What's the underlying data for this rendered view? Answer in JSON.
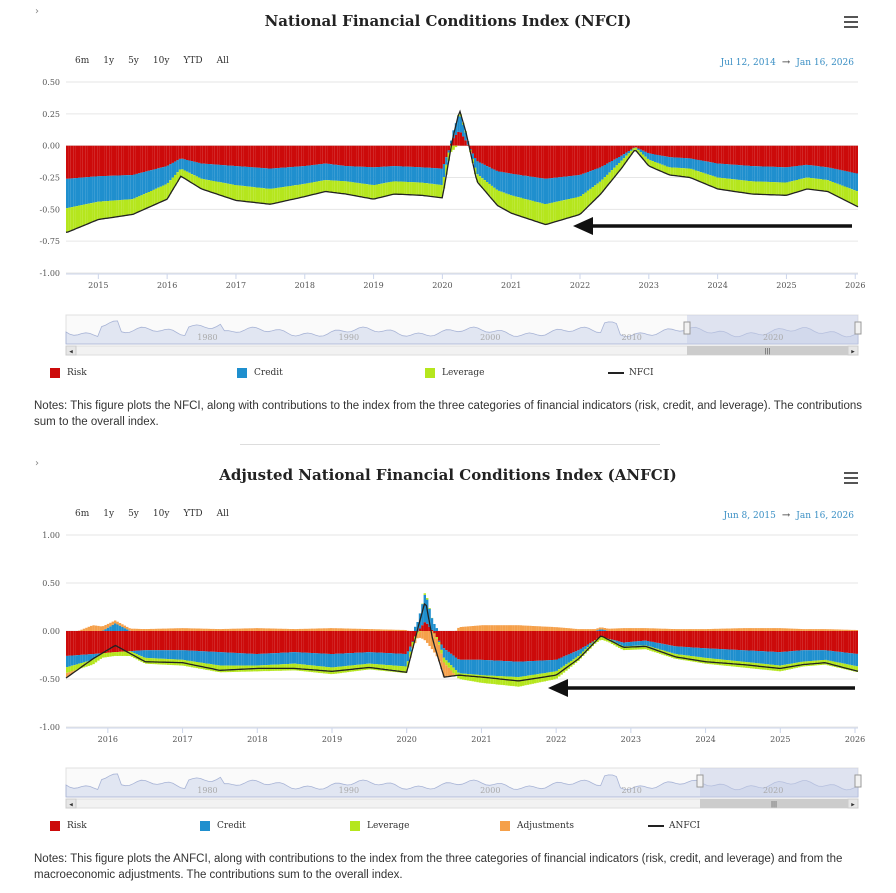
{
  "charts": [
    {
      "title": "National Financial Conditions Index (NFCI)",
      "range_buttons": [
        "6m",
        "1y",
        "5y",
        "10y",
        "YTD",
        "All"
      ],
      "date_from": "Jul 12, 2014",
      "date_to": "Jan 16, 2026",
      "date_arrow": "→",
      "y_ticks": [
        "0.50",
        "0.25",
        "0.00",
        "-0.25",
        "-0.50",
        "-0.75",
        "-1.00"
      ],
      "x_ticks": [
        "2015",
        "2016",
        "2017",
        "2018",
        "2019",
        "2020",
        "2021",
        "2022",
        "2023",
        "2024",
        "2025",
        "2026"
      ],
      "navigator_ticks": [
        "1980",
        "1990",
        "2000",
        "2010",
        "2020"
      ],
      "legend": [
        "Risk",
        "Credit",
        "Leverage",
        "NFCI"
      ],
      "notes": "Notes: This figure plots the NFCI, along with contributions to the index from the three categories of financial indicators (risk, credit, and leverage). The contributions sum to the overall index."
    },
    {
      "title": "Adjusted National Financial Conditions Index (ANFCI)",
      "range_buttons": [
        "6m",
        "1y",
        "5y",
        "10y",
        "YTD",
        "All"
      ],
      "date_from": "Jun 8, 2015",
      "date_to": "Jan 16, 2026",
      "date_arrow": "→",
      "y_ticks": [
        "1.00",
        "0.50",
        "0.00",
        "-0.50",
        "-1.00"
      ],
      "x_ticks": [
        "2016",
        "2017",
        "2018",
        "2019",
        "2020",
        "2021",
        "2022",
        "2023",
        "2024",
        "2025",
        "2026"
      ],
      "navigator_ticks": [
        "1980",
        "1990",
        "2000",
        "2010",
        "2020"
      ],
      "legend": [
        "Risk",
        "Credit",
        "Leverage",
        "Adjustments",
        "ANFCI"
      ],
      "notes": "Notes: This figure plots the ANFCI, along with contributions to the index from the three categories of financial indicators (risk, credit, and leverage) and from the macroeconomic adjustments. The contributions sum to the overall index."
    }
  ],
  "colors": {
    "risk": "#cc0a0a",
    "credit": "#1f8fce",
    "leverage": "#b5e61d",
    "adjustments": "#f5a04a",
    "index_line": "#222222",
    "navigator_fill": "#dde3f1",
    "navigator_line": "#9aa8d0"
  },
  "chart_data": [
    {
      "type": "stacked-area-with-line",
      "title": "National Financial Conditions Index (NFCI)",
      "x": [
        2014.55,
        2015.0,
        2015.5,
        2016.0,
        2016.2,
        2016.5,
        2017.0,
        2017.5,
        2018.0,
        2018.3,
        2018.6,
        2019.0,
        2019.3,
        2019.7,
        2020.0,
        2020.15,
        2020.25,
        2020.35,
        2020.5,
        2020.8,
        2021.0,
        2021.5,
        2022.0,
        2022.3,
        2022.6,
        2022.8,
        2023.0,
        2023.3,
        2023.6,
        2024.0,
        2024.5,
        2025.0,
        2025.3,
        2025.6,
        2026.04
      ],
      "series": [
        {
          "name": "Risk",
          "values": [
            -0.26,
            -0.24,
            -0.23,
            -0.16,
            -0.1,
            -0.14,
            -0.16,
            -0.18,
            -0.16,
            -0.14,
            -0.16,
            -0.17,
            -0.16,
            -0.17,
            -0.18,
            0.05,
            0.12,
            0.03,
            -0.12,
            -0.2,
            -0.22,
            -0.26,
            -0.23,
            -0.17,
            -0.08,
            -0.01,
            -0.06,
            -0.09,
            -0.1,
            -0.14,
            -0.16,
            -0.17,
            -0.15,
            -0.17,
            -0.22
          ]
        },
        {
          "name": "Credit",
          "values": [
            -0.23,
            -0.2,
            -0.19,
            -0.14,
            -0.08,
            -0.12,
            -0.15,
            -0.16,
            -0.14,
            -0.13,
            -0.12,
            -0.14,
            -0.12,
            -0.12,
            -0.13,
            0.05,
            0.14,
            0.05,
            -0.1,
            -0.15,
            -0.17,
            -0.2,
            -0.17,
            -0.11,
            -0.04,
            -0.0,
            -0.05,
            -0.08,
            -0.08,
            -0.11,
            -0.12,
            -0.12,
            -0.1,
            -0.1,
            -0.14
          ]
        },
        {
          "name": "Leverage",
          "values": [
            -0.19,
            -0.14,
            -0.12,
            -0.12,
            -0.06,
            -0.08,
            -0.12,
            -0.12,
            -0.1,
            -0.09,
            -0.1,
            -0.11,
            -0.1,
            -0.1,
            -0.1,
            -0.04,
            0.02,
            0.01,
            -0.06,
            -0.12,
            -0.14,
            -0.16,
            -0.14,
            -0.1,
            -0.06,
            -0.02,
            -0.05,
            -0.06,
            -0.07,
            -0.09,
            -0.1,
            -0.1,
            -0.09,
            -0.09,
            -0.12
          ]
        }
      ],
      "index_name": "NFCI",
      "index_values": [
        -0.68,
        -0.58,
        -0.54,
        -0.42,
        -0.24,
        -0.34,
        -0.43,
        -0.46,
        -0.4,
        -0.36,
        -0.38,
        -0.42,
        -0.38,
        -0.39,
        -0.41,
        0.06,
        0.28,
        0.09,
        -0.28,
        -0.47,
        -0.53,
        -0.62,
        -0.54,
        -0.38,
        -0.18,
        -0.03,
        -0.16,
        -0.23,
        -0.25,
        -0.34,
        -0.38,
        -0.39,
        -0.34,
        -0.36,
        -0.48
      ],
      "ylim": [
        -1.0,
        0.5
      ],
      "xlim": [
        2014.53,
        2026.04
      ],
      "annotations": [
        {
          "type": "arrow",
          "points_to": "2022 trough"
        }
      ]
    },
    {
      "type": "stacked-area-with-line",
      "title": "Adjusted National Financial Conditions Index (ANFCI)",
      "x": [
        2015.44,
        2015.8,
        2016.1,
        2016.5,
        2017.0,
        2017.5,
        2018.0,
        2018.5,
        2019.0,
        2019.5,
        2020.0,
        2020.15,
        2020.25,
        2020.35,
        2020.5,
        2020.7,
        2021.0,
        2021.5,
        2022.0,
        2022.3,
        2022.6,
        2022.9,
        2023.2,
        2023.6,
        2024.0,
        2024.5,
        2025.0,
        2025.3,
        2025.6,
        2026.04
      ],
      "series": [
        {
          "name": "Risk",
          "values": [
            -0.26,
            -0.24,
            -0.22,
            -0.2,
            -0.2,
            -0.22,
            -0.24,
            -0.22,
            -0.24,
            -0.22,
            -0.24,
            0.0,
            0.1,
            0.0,
            -0.18,
            -0.3,
            -0.3,
            -0.32,
            -0.3,
            -0.2,
            -0.06,
            -0.12,
            -0.1,
            -0.16,
            -0.18,
            -0.2,
            -0.22,
            -0.2,
            -0.2,
            -0.24
          ]
        },
        {
          "name": "Credit",
          "values": [
            -0.12,
            -0.06,
            0.08,
            -0.08,
            -0.1,
            -0.14,
            -0.12,
            -0.12,
            -0.14,
            -0.12,
            -0.13,
            0.1,
            0.3,
            0.1,
            -0.1,
            -0.14,
            -0.16,
            -0.16,
            -0.12,
            -0.06,
            0.02,
            -0.04,
            -0.05,
            -0.08,
            -0.1,
            -0.12,
            -0.14,
            -0.12,
            -0.1,
            -0.13
          ]
        },
        {
          "name": "Leverage",
          "values": [
            -0.06,
            -0.05,
            -0.04,
            -0.06,
            -0.06,
            -0.07,
            -0.06,
            -0.07,
            -0.07,
            -0.06,
            -0.07,
            -0.02,
            0.02,
            0.0,
            -0.05,
            -0.06,
            -0.08,
            -0.1,
            -0.08,
            -0.05,
            -0.03,
            -0.04,
            -0.04,
            -0.05,
            -0.06,
            -0.06,
            -0.06,
            -0.05,
            -0.05,
            -0.06
          ]
        },
        {
          "name": "Adjustments",
          "values": [
            -0.05,
            0.06,
            0.03,
            0.02,
            0.03,
            0.02,
            0.03,
            0.02,
            0.03,
            0.02,
            0.01,
            -0.05,
            -0.1,
            -0.2,
            -0.15,
            0.04,
            0.06,
            0.06,
            0.04,
            0.02,
            0.02,
            0.03,
            0.03,
            0.02,
            0.02,
            0.03,
            0.03,
            0.02,
            0.02,
            0.01
          ]
        }
      ],
      "index_name": "ANFCI",
      "index_values": [
        -0.49,
        -0.29,
        -0.15,
        -0.32,
        -0.33,
        -0.41,
        -0.39,
        -0.39,
        -0.42,
        -0.38,
        -0.43,
        0.03,
        0.32,
        -0.1,
        -0.48,
        -0.46,
        -0.48,
        -0.52,
        -0.46,
        -0.29,
        -0.05,
        -0.17,
        -0.16,
        -0.27,
        -0.32,
        -0.35,
        -0.39,
        -0.35,
        -0.33,
        -0.42
      ],
      "ylim": [
        -1.0,
        1.0
      ],
      "xlim": [
        2015.44,
        2026.04
      ],
      "annotations": [
        {
          "type": "arrow",
          "points_to": "2022 trough"
        }
      ]
    }
  ]
}
